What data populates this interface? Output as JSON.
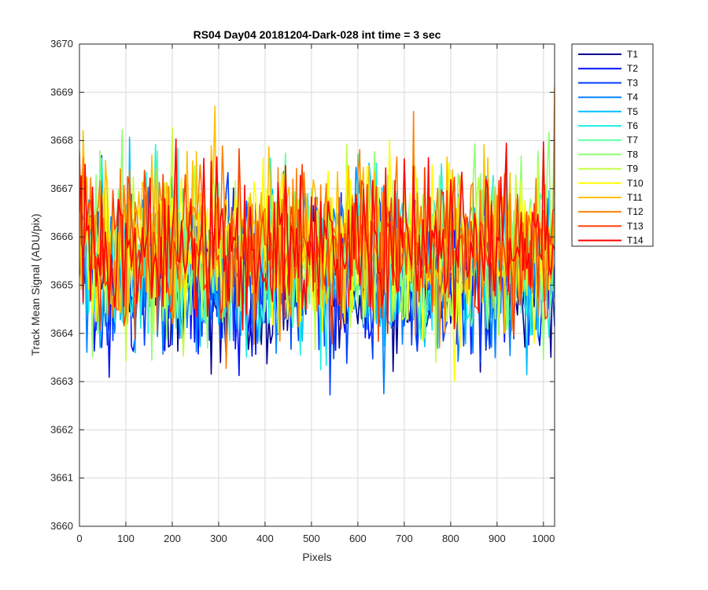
{
  "chart_data": {
    "type": "line",
    "title": "RS04 Day04 20181204-Dark-028 int time = 3 sec",
    "xlabel": "Pixels",
    "ylabel": "Track Mean Signal (ADU/pix)",
    "xlim": [
      0,
      1024
    ],
    "ylim": [
      3660,
      3670
    ],
    "xticks": [
      0,
      100,
      200,
      300,
      400,
      500,
      600,
      700,
      800,
      900,
      1000
    ],
    "yticks": [
      3660,
      3661,
      3662,
      3663,
      3664,
      3665,
      3666,
      3667,
      3668,
      3669,
      3670
    ],
    "grid": true,
    "legend_position": "outside-top-right",
    "x_step": 4,
    "series": [
      {
        "name": "T1",
        "color": "#00008F",
        "mean": 3665.0,
        "spread": 0.8
      },
      {
        "name": "T2",
        "color": "#0010FF",
        "mean": 3665.1,
        "spread": 0.85
      },
      {
        "name": "T3",
        "color": "#0040FF",
        "mean": 3665.2,
        "spread": 0.85
      },
      {
        "name": "T4",
        "color": "#0080FF",
        "mean": 3665.3,
        "spread": 0.85
      },
      {
        "name": "T5",
        "color": "#00C0FF",
        "mean": 3665.4,
        "spread": 0.85
      },
      {
        "name": "T6",
        "color": "#20F0E0",
        "mean": 3665.5,
        "spread": 0.85
      },
      {
        "name": "T7",
        "color": "#60FFA0",
        "mean": 3665.6,
        "spread": 0.85
      },
      {
        "name": "T8",
        "color": "#90FF70",
        "mean": 3665.7,
        "spread": 0.85
      },
      {
        "name": "T9",
        "color": "#C0FF40",
        "mean": 3665.8,
        "spread": 0.85
      },
      {
        "name": "T10",
        "color": "#FFFF00",
        "mean": 3665.9,
        "spread": 0.85
      },
      {
        "name": "T11",
        "color": "#FFC000",
        "mean": 3665.9,
        "spread": 0.85
      },
      {
        "name": "T12",
        "color": "#FF8000",
        "mean": 3665.9,
        "spread": 0.85
      },
      {
        "name": "T13",
        "color": "#FF4000",
        "mean": 3665.8,
        "spread": 0.85
      },
      {
        "name": "T14",
        "color": "#FF0000",
        "mean": 3665.8,
        "spread": 0.8
      }
    ]
  }
}
